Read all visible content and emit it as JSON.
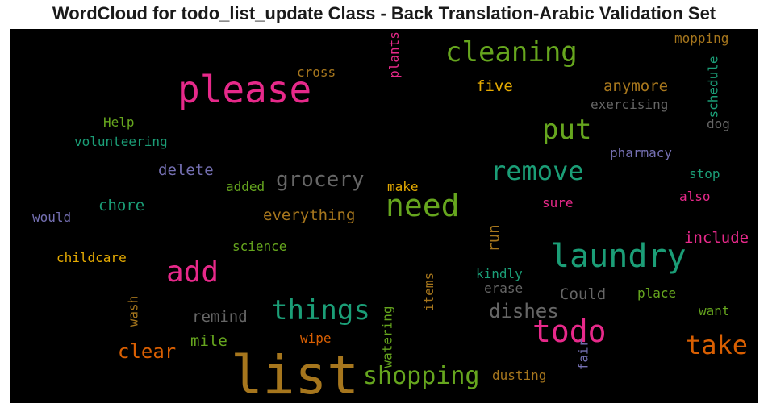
{
  "title": "WordCloud for todo_list_update Class - Back Translation-Arabic Validation Set",
  "colors": {
    "background": "#000000",
    "green": "#66a61e",
    "teal": "#1b9e77",
    "pink": "#e7298a",
    "orange": "#d95f02",
    "gold": "#a6761d",
    "yellow": "#e6ab02",
    "purple": "#7570b3",
    "gray": "#666666"
  },
  "words": [
    {
      "text": "list",
      "color": "#a6761d"
    },
    {
      "text": "please",
      "color": "#e7298a"
    },
    {
      "text": "cleaning",
      "color": "#66a61e"
    },
    {
      "text": "put",
      "color": "#66a61e"
    },
    {
      "text": "remove",
      "color": "#1b9e77"
    },
    {
      "text": "need",
      "color": "#66a61e"
    },
    {
      "text": "laundry",
      "color": "#1b9e77"
    },
    {
      "text": "add",
      "color": "#e7298a"
    },
    {
      "text": "things",
      "color": "#1b9e77"
    },
    {
      "text": "todo",
      "color": "#e7298a"
    },
    {
      "text": "take",
      "color": "#d95f02"
    },
    {
      "text": "shopping",
      "color": "#66a61e"
    },
    {
      "text": "grocery",
      "color": "#666666"
    },
    {
      "text": "dishes",
      "color": "#666666"
    },
    {
      "text": "clear",
      "color": "#d95f02"
    },
    {
      "text": "everything",
      "color": "#a6761d"
    },
    {
      "text": "anymore",
      "color": "#a6761d"
    },
    {
      "text": "five",
      "color": "#e6ab02"
    },
    {
      "text": "Could",
      "color": "#666666"
    },
    {
      "text": "remind",
      "color": "#666666"
    },
    {
      "text": "chore",
      "color": "#1b9e77"
    },
    {
      "text": "delete",
      "color": "#7570b3"
    },
    {
      "text": "include",
      "color": "#e7298a"
    },
    {
      "text": "mile",
      "color": "#66a61e"
    },
    {
      "text": "exercising",
      "color": "#666666"
    },
    {
      "text": "mopping",
      "color": "#a6761d"
    },
    {
      "text": "cross",
      "color": "#a6761d"
    },
    {
      "text": "Help",
      "color": "#66a61e"
    },
    {
      "text": "volunteering",
      "color": "#1b9e77"
    },
    {
      "text": "pharmacy",
      "color": "#7570b3"
    },
    {
      "text": "stop",
      "color": "#1b9e77"
    },
    {
      "text": "also",
      "color": "#e7298a"
    },
    {
      "text": "sure",
      "color": "#e7298a"
    },
    {
      "text": "make",
      "color": "#e6ab02"
    },
    {
      "text": "added",
      "color": "#66a61e"
    },
    {
      "text": "would",
      "color": "#7570b3"
    },
    {
      "text": "childcare",
      "color": "#e6ab02"
    },
    {
      "text": "science",
      "color": "#66a61e"
    },
    {
      "text": "kindly",
      "color": "#1b9e77"
    },
    {
      "text": "erase",
      "color": "#666666"
    },
    {
      "text": "place",
      "color": "#66a61e"
    },
    {
      "text": "want",
      "color": "#66a61e"
    },
    {
      "text": "wipe",
      "color": "#d95f02"
    },
    {
      "text": "dusting",
      "color": "#a6761d"
    },
    {
      "text": "dog",
      "color": "#666666"
    },
    {
      "text": "plants",
      "color": "#e7298a"
    },
    {
      "text": "schedule",
      "color": "#1b9e77"
    },
    {
      "text": "run",
      "color": "#a6761d"
    },
    {
      "text": "items",
      "color": "#a6761d"
    },
    {
      "text": "watering",
      "color": "#66a61e"
    },
    {
      "text": "wash",
      "color": "#a6761d"
    },
    {
      "text": "fair",
      "color": "#7570b3"
    }
  ]
}
